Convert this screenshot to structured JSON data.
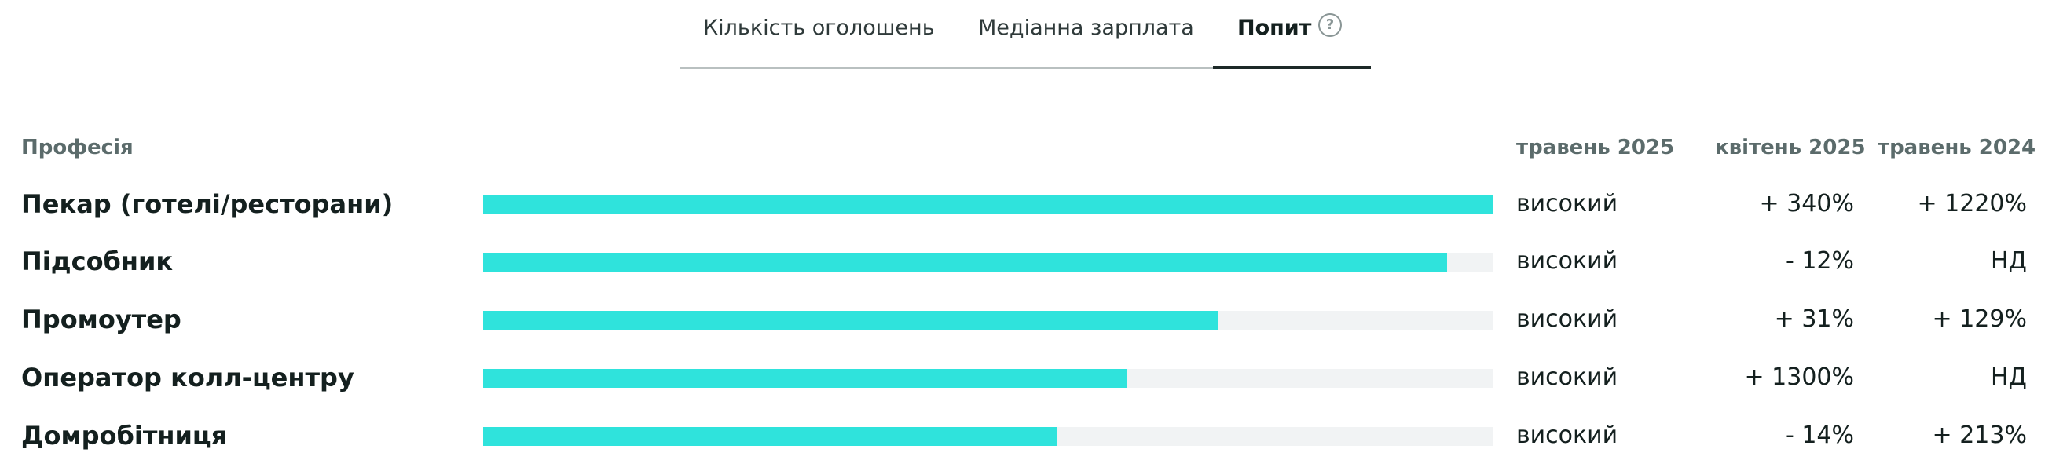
{
  "tabs": [
    {
      "label": "Кількість оголошень"
    },
    {
      "label": "Медіанна зарплата"
    },
    {
      "label": "Попит"
    }
  ],
  "help_icon": "help-circle-icon",
  "columns": {
    "profession": "Професія",
    "may_2025": "травень 2025",
    "apr_2025": "квітень 2025",
    "may_2024": "травень 2024"
  },
  "rows": [
    {
      "name": "Пекар (готелі/ресторани)",
      "bar_fraction": 1.0,
      "demand": "високий",
      "apr_2025": "+ 340%",
      "may_2024": "+ 1220%"
    },
    {
      "name": "Підсобник",
      "bar_fraction": 0.955,
      "demand": "високий",
      "apr_2025": "- 12%",
      "may_2024": "НД"
    },
    {
      "name": "Промоутер",
      "bar_fraction": 0.728,
      "demand": "високий",
      "apr_2025": "+ 31%",
      "may_2024": "+ 129%"
    },
    {
      "name": "Оператор колл-центру",
      "bar_fraction": 0.637,
      "demand": "високий",
      "apr_2025": "+ 1300%",
      "may_2024": "НД"
    },
    {
      "name": "Домробітниця",
      "bar_fraction": 0.569,
      "demand": "високий",
      "apr_2025": "- 14%",
      "may_2024": "+ 213%"
    }
  ],
  "colors": {
    "bar_fill": "#2fe3dc",
    "bar_track": "#f1f3f4"
  }
}
